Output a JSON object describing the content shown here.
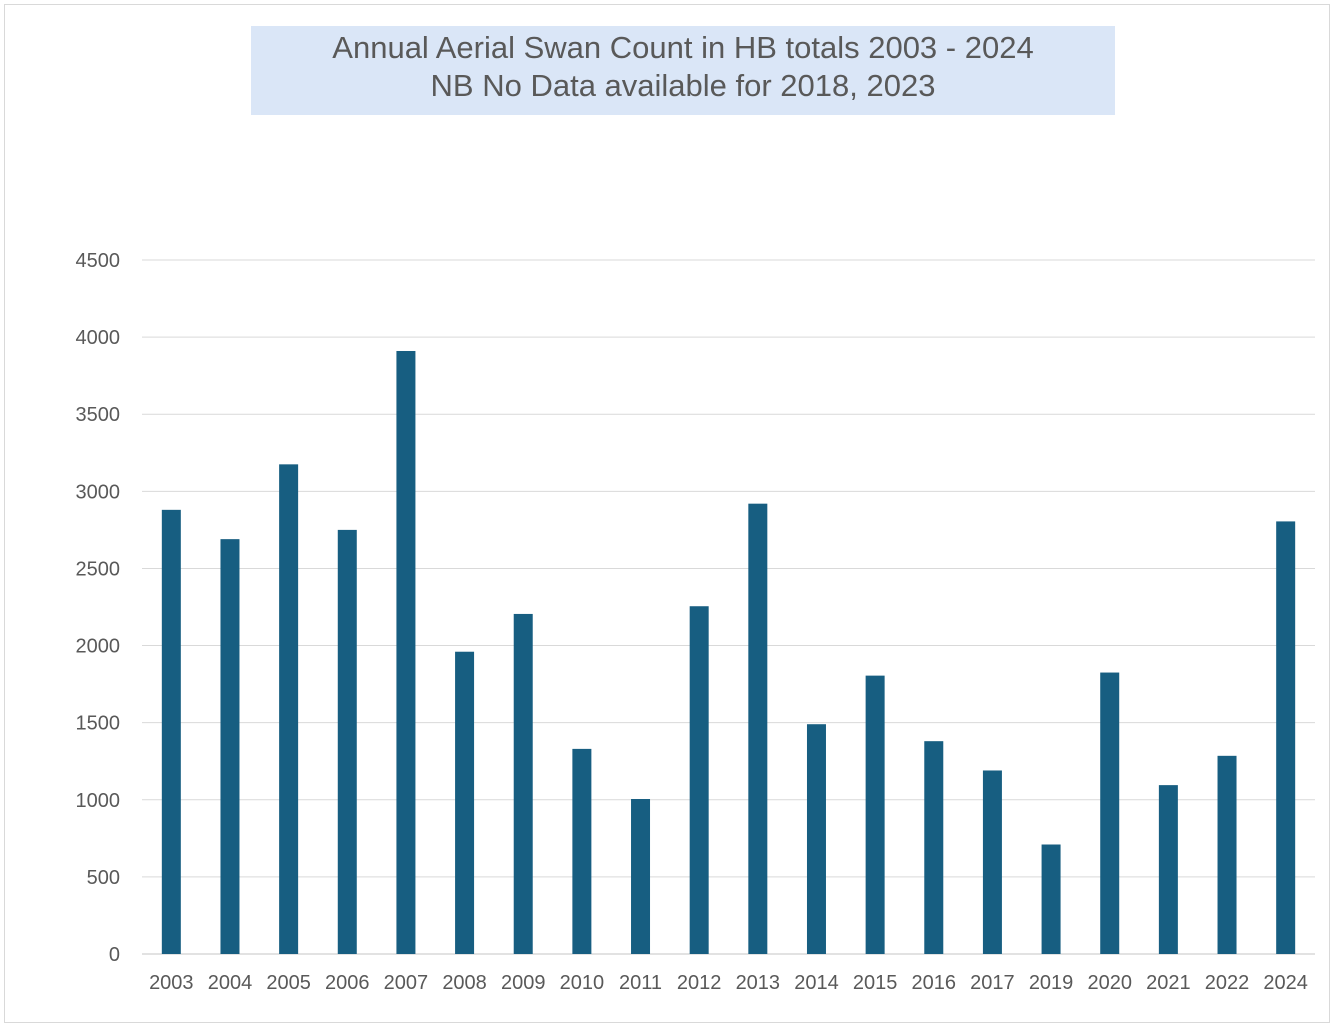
{
  "chart_data": {
    "type": "bar",
    "title": "Annual Aerial Swan Count in HB totals 2003 - 2024",
    "subtitle": "NB No Data available for 2018, 2023",
    "xlabel": "",
    "ylabel": "",
    "categories": [
      "2003",
      "2004",
      "2005",
      "2006",
      "2007",
      "2008",
      "2009",
      "2010",
      "2011",
      "2012",
      "2013",
      "2014",
      "2015",
      "2016",
      "2017",
      "2019",
      "2020",
      "2021",
      "2022",
      "2024"
    ],
    "values": [
      2880,
      2690,
      3175,
      2750,
      3910,
      1960,
      2205,
      1330,
      1005,
      2255,
      2920,
      1490,
      1805,
      1380,
      1190,
      710,
      1825,
      1095,
      1285,
      2805
    ],
    "ylim": [
      0,
      4500
    ],
    "yticks": [
      "0",
      "500",
      "1000",
      "1500",
      "2000",
      "2500",
      "3000",
      "3500",
      "4000",
      "4500"
    ],
    "grid": true,
    "legend": "none",
    "bar_color": "#175e81",
    "grid_color": "#d9d9d9"
  }
}
